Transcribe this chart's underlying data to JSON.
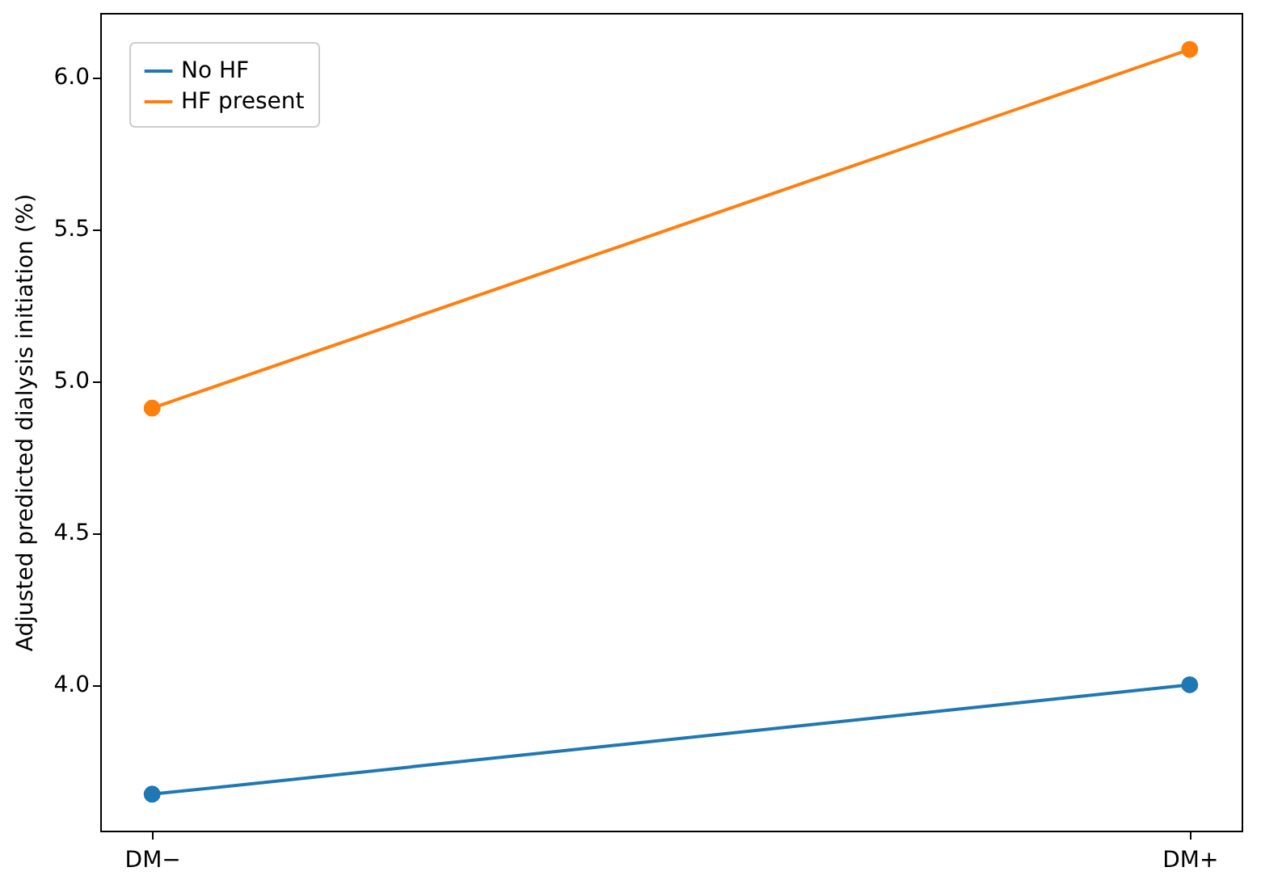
{
  "chart_data": {
    "type": "line",
    "ylabel": "Adjusted predicted dialysis initiation (%)",
    "categories": [
      "DM−",
      "DM+"
    ],
    "series": [
      {
        "name": "No HF",
        "color": "#1f77b4",
        "values": [
          3.64,
          4.0
        ]
      },
      {
        "name": "HF present",
        "color": "#ff7f0e",
        "values": [
          4.91,
          6.09
        ]
      }
    ],
    "ylim": [
      3.52,
      6.21
    ],
    "yticks": [
      {
        "value": 4,
        "label": "4.0"
      },
      4.5,
      {
        "value": 5,
        "label": "5.0"
      },
      5.5,
      {
        "value": 6,
        "label": "6.0"
      }
    ],
    "grid": false,
    "legend": "top left",
    "marker": "circle",
    "line_style": "solid"
  }
}
